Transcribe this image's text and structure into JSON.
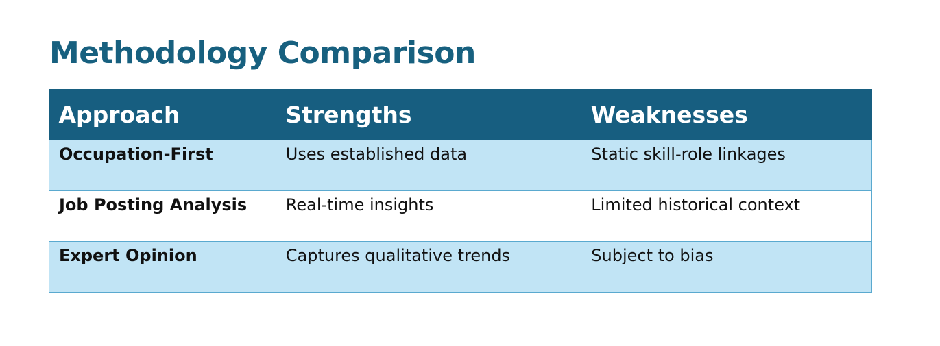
{
  "title": "Methodology Comparison",
  "table": {
    "header": [
      "Approach",
      "Strengths",
      "Weaknesses"
    ],
    "rows": [
      [
        "Occupation-First",
        "Uses established data",
        "Static skill-role linkages"
      ],
      [
        "Job Posting Analysis",
        "Real-time insights",
        "Limited historical context"
      ],
      [
        "Expert Opinion",
        "Captures qualitative trends",
        "Subject to bias"
      ]
    ]
  }
}
